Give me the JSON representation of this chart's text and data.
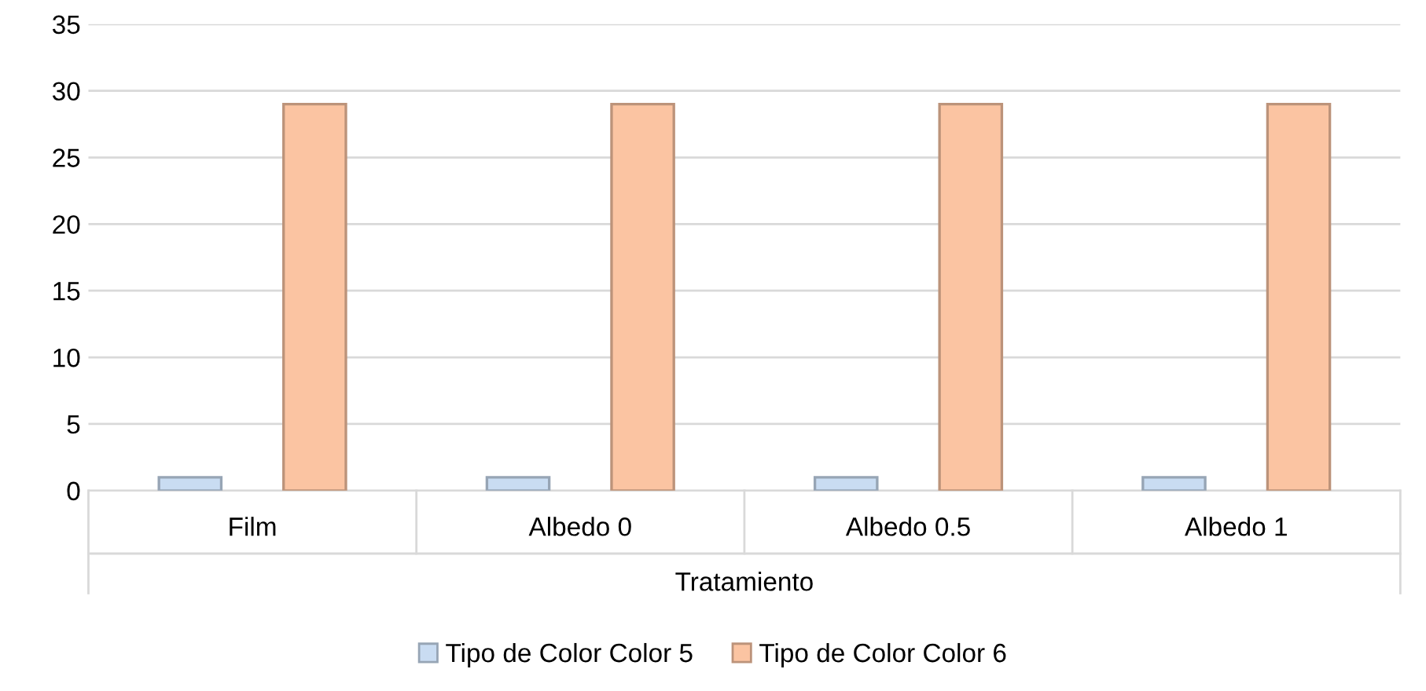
{
  "chart_data": {
    "type": "bar",
    "xlabel": "Tratamiento",
    "categories": [
      "Film",
      "Albedo 0",
      "Albedo 0.5",
      "Albedo 1"
    ],
    "series": [
      {
        "name": "Tipo de Color Color 5",
        "color": "#c9dcf2",
        "values": [
          1,
          1,
          1,
          1
        ]
      },
      {
        "name": "Tipo de Color Color 6",
        "color": "#fbc4a2",
        "values": [
          29,
          29,
          29,
          29
        ]
      }
    ],
    "ylim": [
      0,
      35
    ],
    "yticks": [
      0,
      5,
      10,
      15,
      20,
      25,
      30,
      35
    ],
    "grid": "y",
    "legend": "bottom"
  }
}
